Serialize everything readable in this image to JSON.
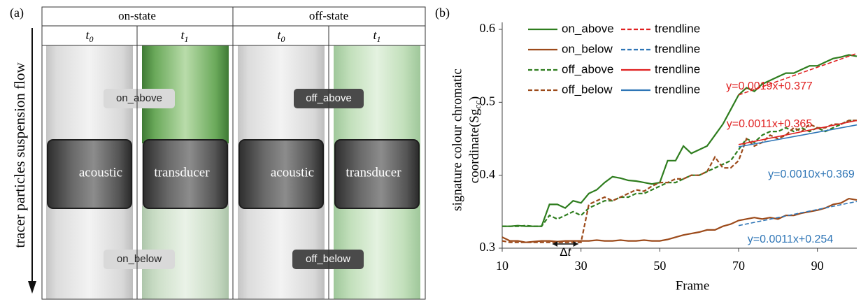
{
  "panel_a": {
    "label": "(a)",
    "states": [
      "on-state",
      "off-state"
    ],
    "times": [
      {
        "base": "t",
        "sub": "0"
      },
      {
        "base": "t",
        "sub": "1"
      },
      {
        "base": "t",
        "sub": "0"
      },
      {
        "base": "t",
        "sub": "1"
      }
    ],
    "tags": [
      "on_above",
      "off_above",
      "on_below",
      "off_below"
    ],
    "transducer_text": [
      "acoustic",
      "transducer",
      "acoustic",
      "transducer"
    ],
    "flow_label": "tracer particles suspension flow"
  },
  "chart_data": {
    "type": "line",
    "panel_label": "(b)",
    "ylabel": {
      "line1": "signature colour chromatic",
      "line2": "coordinate(Sg",
      "sub": "cc",
      "end": ")"
    },
    "xlabel": "Frame",
    "delta_label": {
      "base": "Δ",
      "var": "t"
    },
    "xlim": [
      10,
      100
    ],
    "xticks": [
      10,
      30,
      50,
      70,
      90
    ],
    "ylim": [
      0.3,
      0.6
    ],
    "yticks": [
      0.3,
      0.4,
      0.5,
      0.6
    ],
    "x": [
      10,
      12,
      14,
      16,
      18,
      20,
      22,
      24,
      26,
      28,
      30,
      32,
      34,
      36,
      38,
      40,
      42,
      44,
      46,
      48,
      50,
      52,
      54,
      56,
      58,
      60,
      62,
      64,
      66,
      68,
      70,
      72,
      74,
      76,
      78,
      80,
      82,
      84,
      86,
      88,
      90,
      92,
      94,
      96,
      98,
      100
    ],
    "series": [
      {
        "name": "on_above",
        "color": "#2e7d1e",
        "dash": false,
        "values": [
          0.33,
          0.33,
          0.331,
          0.33,
          0.33,
          0.33,
          0.36,
          0.36,
          0.355,
          0.365,
          0.362,
          0.375,
          0.38,
          0.39,
          0.398,
          0.396,
          0.393,
          0.392,
          0.39,
          0.388,
          0.39,
          0.42,
          0.42,
          0.44,
          0.43,
          0.435,
          0.44,
          0.455,
          0.47,
          0.49,
          0.51,
          0.52,
          0.515,
          0.525,
          0.53,
          0.535,
          0.54,
          0.54,
          0.545,
          0.55,
          0.55,
          0.555,
          0.56,
          0.562,
          0.565,
          0.563
        ]
      },
      {
        "name": "on_below",
        "color": "#9c4a1a",
        "dash": false,
        "values": [
          0.315,
          0.31,
          0.31,
          0.308,
          0.309,
          0.31,
          0.31,
          0.309,
          0.31,
          0.31,
          0.31,
          0.31,
          0.311,
          0.31,
          0.31,
          0.311,
          0.31,
          0.31,
          0.311,
          0.31,
          0.31,
          0.312,
          0.315,
          0.318,
          0.32,
          0.322,
          0.325,
          0.325,
          0.33,
          0.333,
          0.338,
          0.34,
          0.342,
          0.34,
          0.342,
          0.34,
          0.345,
          0.345,
          0.348,
          0.35,
          0.352,
          0.355,
          0.36,
          0.362,
          0.368,
          0.366
        ]
      },
      {
        "name": "off_above",
        "color": "#2e7d1e",
        "dash": true,
        "values": [
          0.33,
          0.33,
          0.33,
          0.331,
          0.33,
          0.33,
          0.345,
          0.34,
          0.345,
          0.35,
          0.345,
          0.355,
          0.36,
          0.365,
          0.365,
          0.37,
          0.37,
          0.375,
          0.375,
          0.38,
          0.385,
          0.39,
          0.39,
          0.395,
          0.4,
          0.4,
          0.405,
          0.41,
          0.415,
          0.42,
          0.435,
          0.45,
          0.445,
          0.455,
          0.46,
          0.46,
          0.465,
          0.46,
          0.465,
          0.46,
          0.465,
          0.46,
          0.465,
          0.47,
          0.475,
          0.475
        ]
      },
      {
        "name": "off_below",
        "color": "#9c4a1a",
        "dash": true,
        "values": [
          0.31,
          0.308,
          0.308,
          0.308,
          0.308,
          0.308,
          0.308,
          0.308,
          0.308,
          0.308,
          0.308,
          0.36,
          0.365,
          0.37,
          0.365,
          0.37,
          0.375,
          0.38,
          0.378,
          0.385,
          0.39,
          0.39,
          0.395,
          0.395,
          0.4,
          0.4,
          0.405,
          0.425,
          0.41,
          0.41,
          0.42,
          0.45,
          0.44,
          0.445,
          0.455,
          0.45,
          0.455,
          0.465,
          0.46,
          0.47,
          0.465,
          0.465,
          0.47,
          0.47,
          0.475,
          0.475
        ]
      },
      {
        "name": "trendline",
        "color": "#e02020",
        "dash": true,
        "x": [
          70,
          100
        ],
        "values": [
          0.51,
          0.567
        ]
      },
      {
        "name": "trendline",
        "color": "#2e75b6",
        "dash": true,
        "x": [
          70,
          100
        ],
        "values": [
          0.331,
          0.364
        ]
      },
      {
        "name": "trendline",
        "color": "#e02020",
        "dash": false,
        "x": [
          70,
          100
        ],
        "values": [
          0.442,
          0.475
        ]
      },
      {
        "name": "trendline",
        "color": "#2e75b6",
        "dash": false,
        "x": [
          70,
          100
        ],
        "values": [
          0.439,
          0.469
        ]
      }
    ],
    "annotations": [
      {
        "text": "y=0.0019x+0.377",
        "color": "#e02020"
      },
      {
        "text": "y=0.0011x+0.365",
        "color": "#e02020"
      },
      {
        "text": "y=0.0010x+0.369",
        "color": "#2e75b6"
      },
      {
        "text": "y=0.0011x+0.254",
        "color": "#2e75b6"
      }
    ]
  }
}
